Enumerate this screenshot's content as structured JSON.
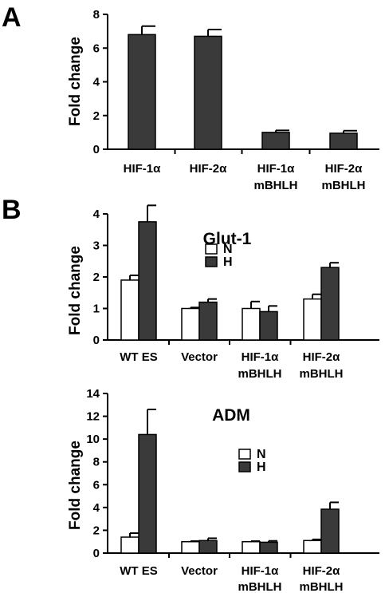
{
  "colors": {
    "filled": "#3a3a3a",
    "open": "#ffffff",
    "stroke": "#000000"
  },
  "panels": {
    "A": {
      "letter": "A"
    },
    "B": {
      "letter": "B"
    }
  },
  "chart_data": [
    {
      "id": "chartA",
      "type": "bar",
      "title": "",
      "ylabel": "Fold change",
      "ylim": [
        0,
        8
      ],
      "yticks": [
        0,
        2,
        4,
        6,
        8
      ],
      "categories": [
        "HIF-1α",
        "HIF-2α",
        "HIF-1α\nmBHLH",
        "HIF-2α\nmBHLH"
      ],
      "series": [
        {
          "values": [
            6.8,
            6.7,
            1.0,
            0.95
          ],
          "errors": [
            0.5,
            0.4,
            0.12,
            0.15
          ],
          "fill": "filled"
        }
      ],
      "legend": null
    },
    {
      "id": "chartB1",
      "type": "bar",
      "title": "Glut-1",
      "ylabel": "Fold change",
      "ylim": [
        0,
        4
      ],
      "yticks": [
        0,
        1,
        2,
        3,
        4
      ],
      "categories": [
        "WT ES",
        "Vector",
        "HIF-1α\nmBHLH",
        "HIF-2α\nmBHLH"
      ],
      "series": [
        {
          "name": "N",
          "values": [
            1.9,
            1.0,
            1.0,
            1.3
          ],
          "errors": [
            0.15,
            0.03,
            0.22,
            0.15
          ],
          "fill": "open"
        },
        {
          "name": "H",
          "values": [
            3.75,
            1.2,
            0.9,
            2.3
          ],
          "errors": [
            0.52,
            0.1,
            0.18,
            0.15
          ],
          "fill": "filled"
        }
      ],
      "legend": {
        "items": [
          "N",
          "H"
        ]
      }
    },
    {
      "id": "chartB2",
      "type": "bar",
      "title": "ADM",
      "ylabel": "Fold change",
      "ylim": [
        0,
        14
      ],
      "yticks": [
        0,
        2,
        4,
        6,
        8,
        10,
        12,
        14
      ],
      "categories": [
        "WT ES",
        "Vector",
        "HIF-1α\nmBHLH",
        "HIF-2α\nmBHLH"
      ],
      "series": [
        {
          "name": "N",
          "values": [
            1.4,
            1.0,
            1.0,
            1.1
          ],
          "errors": [
            0.35,
            0.05,
            0.05,
            0.1
          ],
          "fill": "open"
        },
        {
          "name": "H",
          "values": [
            10.4,
            1.1,
            0.95,
            3.85
          ],
          "errors": [
            2.2,
            0.2,
            0.12,
            0.6
          ],
          "fill": "filled"
        }
      ],
      "legend": {
        "items": [
          "N",
          "H"
        ]
      }
    }
  ]
}
